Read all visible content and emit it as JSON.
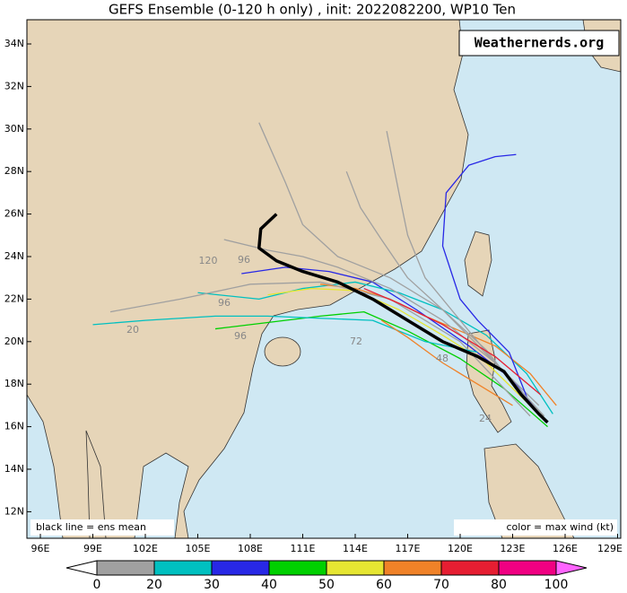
{
  "map": {
    "title": "GEFS Ensemble (0-120 h only) , init: 2022082200, WP10 Ten",
    "watermark": "Weathernerds.org",
    "note_left": "black line = ens mean",
    "note_right": "color = max wind (kt)",
    "lat_ticks": [
      {
        "value": 12,
        "label": "12N"
      },
      {
        "value": 14,
        "label": "14N"
      },
      {
        "value": 16,
        "label": "16N"
      },
      {
        "value": 18,
        "label": "18N"
      },
      {
        "value": 20,
        "label": "20N"
      },
      {
        "value": 22,
        "label": "22N"
      },
      {
        "value": 24,
        "label": "24N"
      },
      {
        "value": 26,
        "label": "26N"
      },
      {
        "value": 28,
        "label": "28N"
      },
      {
        "value": 30,
        "label": "30N"
      },
      {
        "value": 32,
        "label": "32N"
      },
      {
        "value": 34,
        "label": "34N"
      }
    ],
    "lon_ticks": [
      {
        "value": 96,
        "label": "96E"
      },
      {
        "value": 99,
        "label": "99E"
      },
      {
        "value": 102,
        "label": "102E"
      },
      {
        "value": 105,
        "label": "105E"
      },
      {
        "value": 108,
        "label": "108E"
      },
      {
        "value": 111,
        "label": "111E"
      },
      {
        "value": 114,
        "label": "114E"
      },
      {
        "value": 117,
        "label": "117E"
      },
      {
        "value": 120,
        "label": "120E"
      },
      {
        "value": 123,
        "label": "123E"
      },
      {
        "value": 126,
        "label": "126E"
      },
      {
        "value": 129,
        "label": "129E"
      }
    ],
    "hour_labels": [
      "120",
      "96",
      "96",
      "96",
      "72",
      "20",
      "48",
      "24"
    ],
    "colorbar": {
      "bounds": [
        0,
        20,
        30,
        40,
        50,
        60,
        70,
        80,
        100
      ],
      "colors": [
        "#a0a0a0",
        "#00c0c0",
        "#2828e6",
        "#00d000",
        "#e6e632",
        "#f08228",
        "#e61e32",
        "#f00082"
      ],
      "under_color": "#ffffff",
      "over_color": "#ff64ff"
    },
    "tracks": [
      {
        "color": "#2828e6",
        "lon": [
          124.9,
          123,
          120.5,
          117.5,
          115,
          112.5,
          110,
          107.5
        ],
        "lat": [
          16.2,
          18.2,
          19.8,
          21.5,
          22.8,
          23.3,
          23.5,
          23.2
        ]
      },
      {
        "color": "#00c0c0",
        "lon": [
          125.3,
          123.8,
          121.5,
          119,
          116.5,
          114,
          111,
          108.5,
          105
        ],
        "lat": [
          16.6,
          18.5,
          20.3,
          21.5,
          22.3,
          22.8,
          22.5,
          22,
          22.3
        ]
      },
      {
        "color": "#00d000",
        "lon": [
          125,
          122.5,
          120,
          117,
          114.5,
          112,
          109,
          106
        ],
        "lat": [
          16,
          17.8,
          19.2,
          20.5,
          21.4,
          21.2,
          20.9,
          20.6
        ]
      },
      {
        "color": "#e6e632",
        "lon": [
          124,
          121.5,
          119,
          116.5,
          114,
          111.5,
          109
        ],
        "lat": [
          17,
          19,
          20.3,
          21.5,
          22.4,
          22.5,
          22.2
        ]
      },
      {
        "color": "#f08228",
        "lon": [
          125.5,
          124,
          122,
          120,
          118,
          116,
          114,
          112
        ],
        "lat": [
          17,
          18.5,
          19.8,
          20.5,
          21.2,
          22,
          22.5,
          22.7
        ]
      },
      {
        "color": "#a0a0a0",
        "lon": [
          124.5,
          122,
          119,
          116,
          113,
          111,
          109,
          106.5
        ],
        "lat": [
          17,
          19,
          21,
          22.5,
          23.5,
          24,
          24.3,
          24.8
        ]
      },
      {
        "color": "#a0a0a0",
        "lon": [
          124,
          121.5,
          119,
          117,
          115.5,
          114.3,
          113.5
        ],
        "lat": [
          17,
          19.6,
          21.5,
          23,
          24.8,
          26.3,
          28
        ]
      },
      {
        "color": "#a0a0a0",
        "lon": [
          124.8,
          122,
          120,
          118,
          117,
          116.5,
          115.8
        ],
        "lat": [
          16.3,
          19,
          21,
          23,
          25,
          27,
          29.9
        ]
      },
      {
        "color": "#2828e6",
        "lon": [
          124,
          122.8,
          121,
          120,
          119,
          119.2,
          120.5,
          122,
          123.2
        ],
        "lat": [
          17,
          19.5,
          21,
          22,
          24.5,
          27,
          28.3,
          28.7,
          28.8
        ]
      },
      {
        "color": "#a0a0a0",
        "lon": [
          124.8,
          122,
          119,
          116,
          113,
          111,
          110,
          108.5
        ],
        "lat": [
          16.5,
          19,
          21.5,
          23,
          24,
          25.5,
          27.5,
          30.3
        ]
      },
      {
        "color": "#a0a0a0",
        "lon": [
          124,
          120,
          116,
          112,
          108,
          104,
          100
        ],
        "lat": [
          16.5,
          20,
          22,
          22.8,
          22.7,
          22,
          21.4
        ]
      },
      {
        "color": "#00c0c0",
        "lon": [
          121,
          118,
          115,
          112,
          109,
          106,
          102,
          99
        ],
        "lat": [
          19.5,
          20,
          21,
          21.1,
          21.2,
          21.2,
          21,
          20.8
        ]
      },
      {
        "color": "#e61e32",
        "lon": [
          124.6,
          122,
          119,
          116.5,
          114.5
        ],
        "lat": [
          17.5,
          19.3,
          20.8,
          21.8,
          22.5
        ]
      },
      {
        "color": "#f08228",
        "lon": [
          123,
          121,
          119,
          117,
          115.5
        ],
        "lat": [
          17,
          18,
          19,
          20.2,
          21
        ]
      }
    ],
    "mean_track": {
      "color": "#000000",
      "lon": [
        125,
        124.5,
        123.5,
        122.5,
        121,
        119,
        117,
        115,
        113,
        111,
        109.5,
        108.5,
        108.6,
        109.5
      ],
      "lat": [
        16.2,
        16.6,
        17.5,
        18.6,
        19.3,
        20,
        21,
        22,
        22.8,
        23.3,
        23.8,
        24.4,
        25.3,
        26
      ]
    }
  }
}
